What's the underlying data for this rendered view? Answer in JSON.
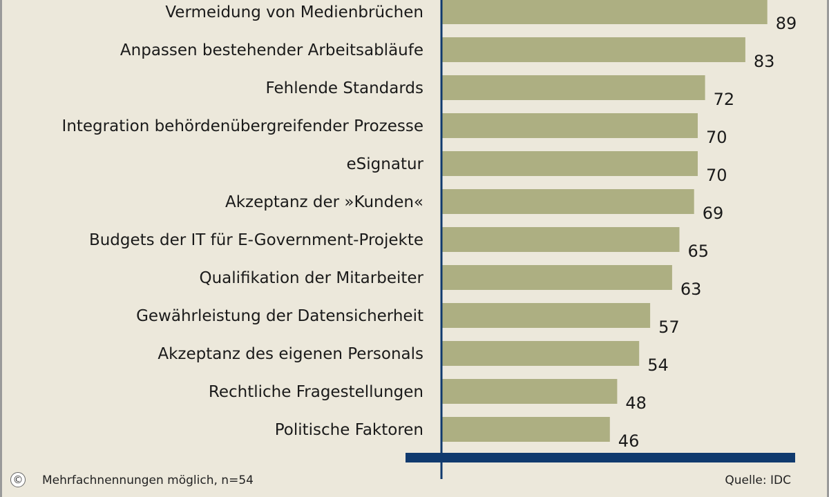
{
  "chart_data": {
    "type": "bar",
    "orientation": "horizontal",
    "categories": [
      "Vermeidung von Medienbrüchen",
      "Anpassen bestehender Arbeitsabläufe",
      "Fehlende Standards",
      "Integration behördenübergreifender Prozesse",
      "eSignatur",
      "Akzeptanz der »Kunden«",
      "Budgets der IT für E-Government-Projekte",
      "Qualifikation der Mitarbeiter",
      "Gewährleistung der Datensicherheit",
      "Akzeptanz des eigenen Personals",
      "Rechtliche Fragestellungen",
      "Politische Faktoren"
    ],
    "values": [
      89,
      83,
      72,
      70,
      70,
      69,
      65,
      63,
      57,
      54,
      48,
      46
    ],
    "xlim": [
      0,
      100
    ],
    "bar_color": "#adaf82",
    "axis_color": "#103a6e",
    "grid": false
  },
  "footnote": "Mehrfachnennungen möglich, n=54",
  "source": "Quelle: IDC",
  "copyright_symbol": "©"
}
